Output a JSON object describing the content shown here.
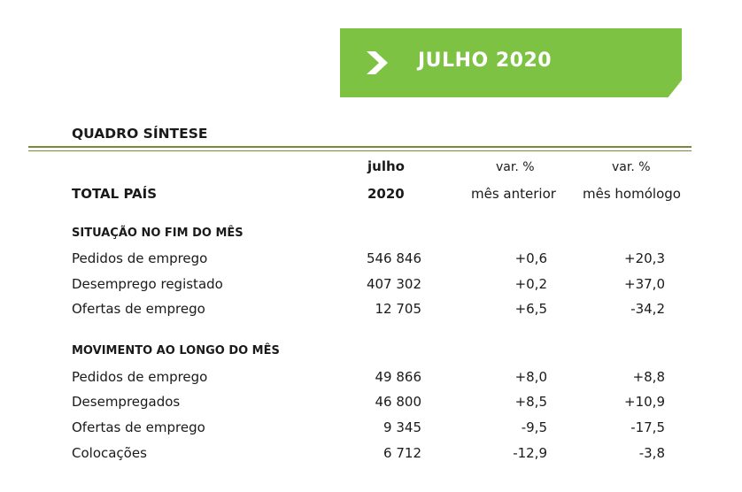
{
  "banner": {
    "title": "JULHO 2020",
    "icon": "chevron-right-icon",
    "color": "#7dc242"
  },
  "section_title": "QUADRO  SÍNTESE",
  "header": {
    "row_label": "TOTAL PAÍS",
    "col1_line1": "julho",
    "col1_line2": "2020",
    "col2_line1": "var. %",
    "col2_line2": "mês anterior",
    "col3_line1": "var. %",
    "col3_line2": "mês homólogo"
  },
  "groups": [
    {
      "title": "SITUAÇÃO NO FIM DO MÊS",
      "rows": [
        {
          "label": "Pedidos de emprego",
          "value": "546 846",
          "var_prev": "+0,6",
          "var_yoy": "+20,3"
        },
        {
          "label": "Desemprego registado",
          "value": "407 302",
          "var_prev": "+0,2",
          "var_yoy": "+37,0"
        },
        {
          "label": "Ofertas de emprego",
          "value": "12 705",
          "var_prev": "+6,5",
          "var_yoy": "-34,2"
        }
      ]
    },
    {
      "title": "MOVIMENTO AO LONGO DO MÊS",
      "rows": [
        {
          "label": "Pedidos de emprego",
          "value": "49 866",
          "var_prev": "+8,0",
          "var_yoy": "+8,8"
        },
        {
          "label": "Desempregados",
          "value": "46 800",
          "var_prev": "+8,5",
          "var_yoy": "+10,9"
        },
        {
          "label": "Ofertas de emprego",
          "value": "9 345",
          "var_prev": "-9,5",
          "var_yoy": "-17,5"
        },
        {
          "label": "Colocações",
          "value": "6 712",
          "var_prev": "-12,9",
          "var_yoy": "-3,8"
        }
      ]
    }
  ]
}
